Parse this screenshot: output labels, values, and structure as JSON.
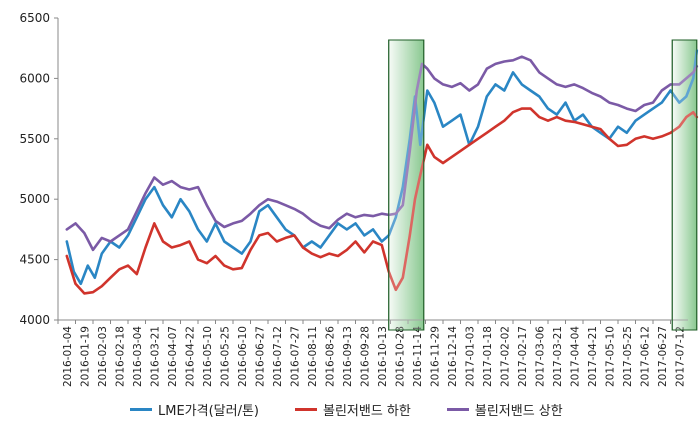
{
  "chart_data": {
    "type": "line",
    "title": "",
    "xlabel": "",
    "ylabel": "",
    "ylim": [
      4000,
      6500
    ],
    "yticks": [
      4000,
      4500,
      5000,
      5500,
      6000,
      6500
    ],
    "grid": false,
    "legend_position": "bottom",
    "x_tick_labels": [
      "2016-01-04",
      "2016-01-19",
      "2016-02-03",
      "2016-02-18",
      "2016-03-04",
      "2016-03-21",
      "2016-04-07",
      "2016-04-22",
      "2016-05-10",
      "2016-05-25",
      "2016-06-10",
      "2016-06-27",
      "2016-07-12",
      "2016-07-27",
      "2016-08-11",
      "2016-08-26",
      "2016-09-13",
      "2016-09-28",
      "2016-10-13",
      "2016-10-28",
      "2016-11-14",
      "2016-11-29",
      "2016-12-14",
      "2017-01-03",
      "2017-01-18",
      "2017-02-02",
      "2017-02-17",
      "2017-03-06",
      "2017-03-21",
      "2017-04-04",
      "2017-04-21",
      "2017-05-10",
      "2017-05-25",
      "2017-06-12",
      "2017-06-27",
      "2017-07-12"
    ],
    "highlight_ranges": [
      {
        "from_tick": 18.4,
        "to_tick": 20.4,
        "color": "#2e9e3a"
      },
      {
        "from_tick": 34.6,
        "to_tick": 36.0,
        "color": "#2e9e3a"
      }
    ],
    "series": [
      {
        "name": "LME가격(달러/톤)",
        "color": "#2a86c4",
        "x": [
          0,
          0.4,
          0.8,
          1.2,
          1.6,
          2,
          2.5,
          3,
          3.5,
          4,
          4.5,
          5,
          5.5,
          6,
          6.5,
          7,
          7.5,
          8,
          8.5,
          9,
          9.5,
          10,
          10.5,
          11,
          11.5,
          12,
          12.5,
          13,
          13.5,
          14,
          14.5,
          15,
          15.5,
          16,
          16.5,
          17,
          17.5,
          18,
          18.4,
          18.8,
          19.2,
          19.6,
          19.9,
          20.2,
          20.6,
          21,
          21.5,
          22,
          22.5,
          23,
          23.5,
          24,
          24.5,
          25,
          25.5,
          26,
          26.5,
          27,
          27.5,
          28,
          28.5,
          29,
          29.5,
          30,
          30.5,
          31,
          31.5,
          32,
          32.5,
          33,
          33.5,
          34,
          34.5,
          35,
          35.4,
          35.8,
          36
        ],
        "values": [
          4650,
          4400,
          4300,
          4450,
          4350,
          4550,
          4650,
          4600,
          4700,
          4850,
          5000,
          5100,
          4950,
          4850,
          5000,
          4900,
          4750,
          4650,
          4800,
          4650,
          4600,
          4550,
          4650,
          4900,
          4950,
          4850,
          4750,
          4700,
          4600,
          4650,
          4600,
          4700,
          4800,
          4750,
          4800,
          4700,
          4750,
          4650,
          4700,
          4850,
          5100,
          5500,
          5850,
          5450,
          5900,
          5800,
          5600,
          5650,
          5700,
          5450,
          5600,
          5850,
          5950,
          5900,
          6050,
          5950,
          5900,
          5850,
          5750,
          5700,
          5800,
          5650,
          5700,
          5600,
          5550,
          5500,
          5600,
          5550,
          5650,
          5700,
          5750,
          5800,
          5900,
          5800,
          5850,
          6000,
          6230
        ]
      },
      {
        "name": "볼린저밴드 하한",
        "color": "#d0342c",
        "x": [
          0,
          0.5,
          1,
          1.5,
          2,
          2.5,
          3,
          3.5,
          4,
          4.5,
          5,
          5.5,
          6,
          6.5,
          7,
          7.5,
          8,
          8.5,
          9,
          9.5,
          10,
          10.5,
          11,
          11.5,
          12,
          12.5,
          13,
          13.5,
          14,
          14.5,
          15,
          15.5,
          16,
          16.5,
          17,
          17.5,
          18,
          18.4,
          18.8,
          19.2,
          19.6,
          19.9,
          20.2,
          20.6,
          21,
          21.5,
          22,
          22.5,
          23,
          23.5,
          24,
          24.5,
          25,
          25.5,
          26,
          26.5,
          27,
          27.5,
          28,
          28.5,
          29,
          29.5,
          30,
          30.5,
          31,
          31.5,
          32,
          32.5,
          33,
          33.5,
          34,
          34.5,
          35,
          35.4,
          35.8,
          36
        ],
        "values": [
          4530,
          4300,
          4220,
          4230,
          4280,
          4350,
          4420,
          4450,
          4380,
          4600,
          4800,
          4650,
          4600,
          4620,
          4650,
          4500,
          4470,
          4530,
          4450,
          4420,
          4430,
          4580,
          4700,
          4720,
          4650,
          4680,
          4700,
          4600,
          4550,
          4520,
          4550,
          4530,
          4580,
          4650,
          4560,
          4650,
          4620,
          4400,
          4250,
          4350,
          4700,
          5000,
          5200,
          5450,
          5350,
          5300,
          5350,
          5400,
          5450,
          5500,
          5550,
          5600,
          5650,
          5720,
          5750,
          5750,
          5680,
          5650,
          5680,
          5650,
          5640,
          5620,
          5600,
          5580,
          5500,
          5440,
          5450,
          5500,
          5520,
          5500,
          5520,
          5550,
          5600,
          5680,
          5720,
          5680
        ]
      },
      {
        "name": "볼린저밴드 상한",
        "color": "#7b5aa6",
        "x": [
          0,
          0.5,
          1,
          1.5,
          2,
          2.5,
          3,
          3.5,
          4,
          4.5,
          5,
          5.5,
          6,
          6.5,
          7,
          7.5,
          8,
          8.5,
          9,
          9.5,
          10,
          10.5,
          11,
          11.5,
          12,
          12.5,
          13,
          13.5,
          14,
          14.5,
          15,
          15.5,
          16,
          16.5,
          17,
          17.5,
          18,
          18.4,
          18.8,
          19.2,
          19.6,
          20,
          20.3,
          20.6,
          21,
          21.5,
          22,
          22.5,
          23,
          23.5,
          24,
          24.5,
          25,
          25.5,
          26,
          26.5,
          27,
          27.5,
          28,
          28.5,
          29,
          29.5,
          30,
          30.5,
          31,
          31.5,
          32,
          32.5,
          33,
          33.5,
          34,
          34.5,
          35,
          35.4,
          35.8,
          36
        ],
        "values": [
          4750,
          4800,
          4720,
          4580,
          4680,
          4650,
          4700,
          4750,
          4900,
          5050,
          5180,
          5120,
          5150,
          5100,
          5080,
          5100,
          4950,
          4820,
          4770,
          4800,
          4820,
          4880,
          4950,
          5000,
          4980,
          4950,
          4920,
          4880,
          4820,
          4780,
          4760,
          4830,
          4880,
          4850,
          4870,
          4860,
          4880,
          4870,
          4880,
          4950,
          5400,
          5900,
          6120,
          6080,
          6000,
          5950,
          5930,
          5960,
          5900,
          5950,
          6080,
          6120,
          6140,
          6150,
          6180,
          6150,
          6050,
          6000,
          5950,
          5930,
          5950,
          5920,
          5880,
          5850,
          5800,
          5780,
          5750,
          5730,
          5780,
          5800,
          5900,
          5950,
          5950,
          6000,
          6050,
          6100
        ]
      }
    ]
  }
}
